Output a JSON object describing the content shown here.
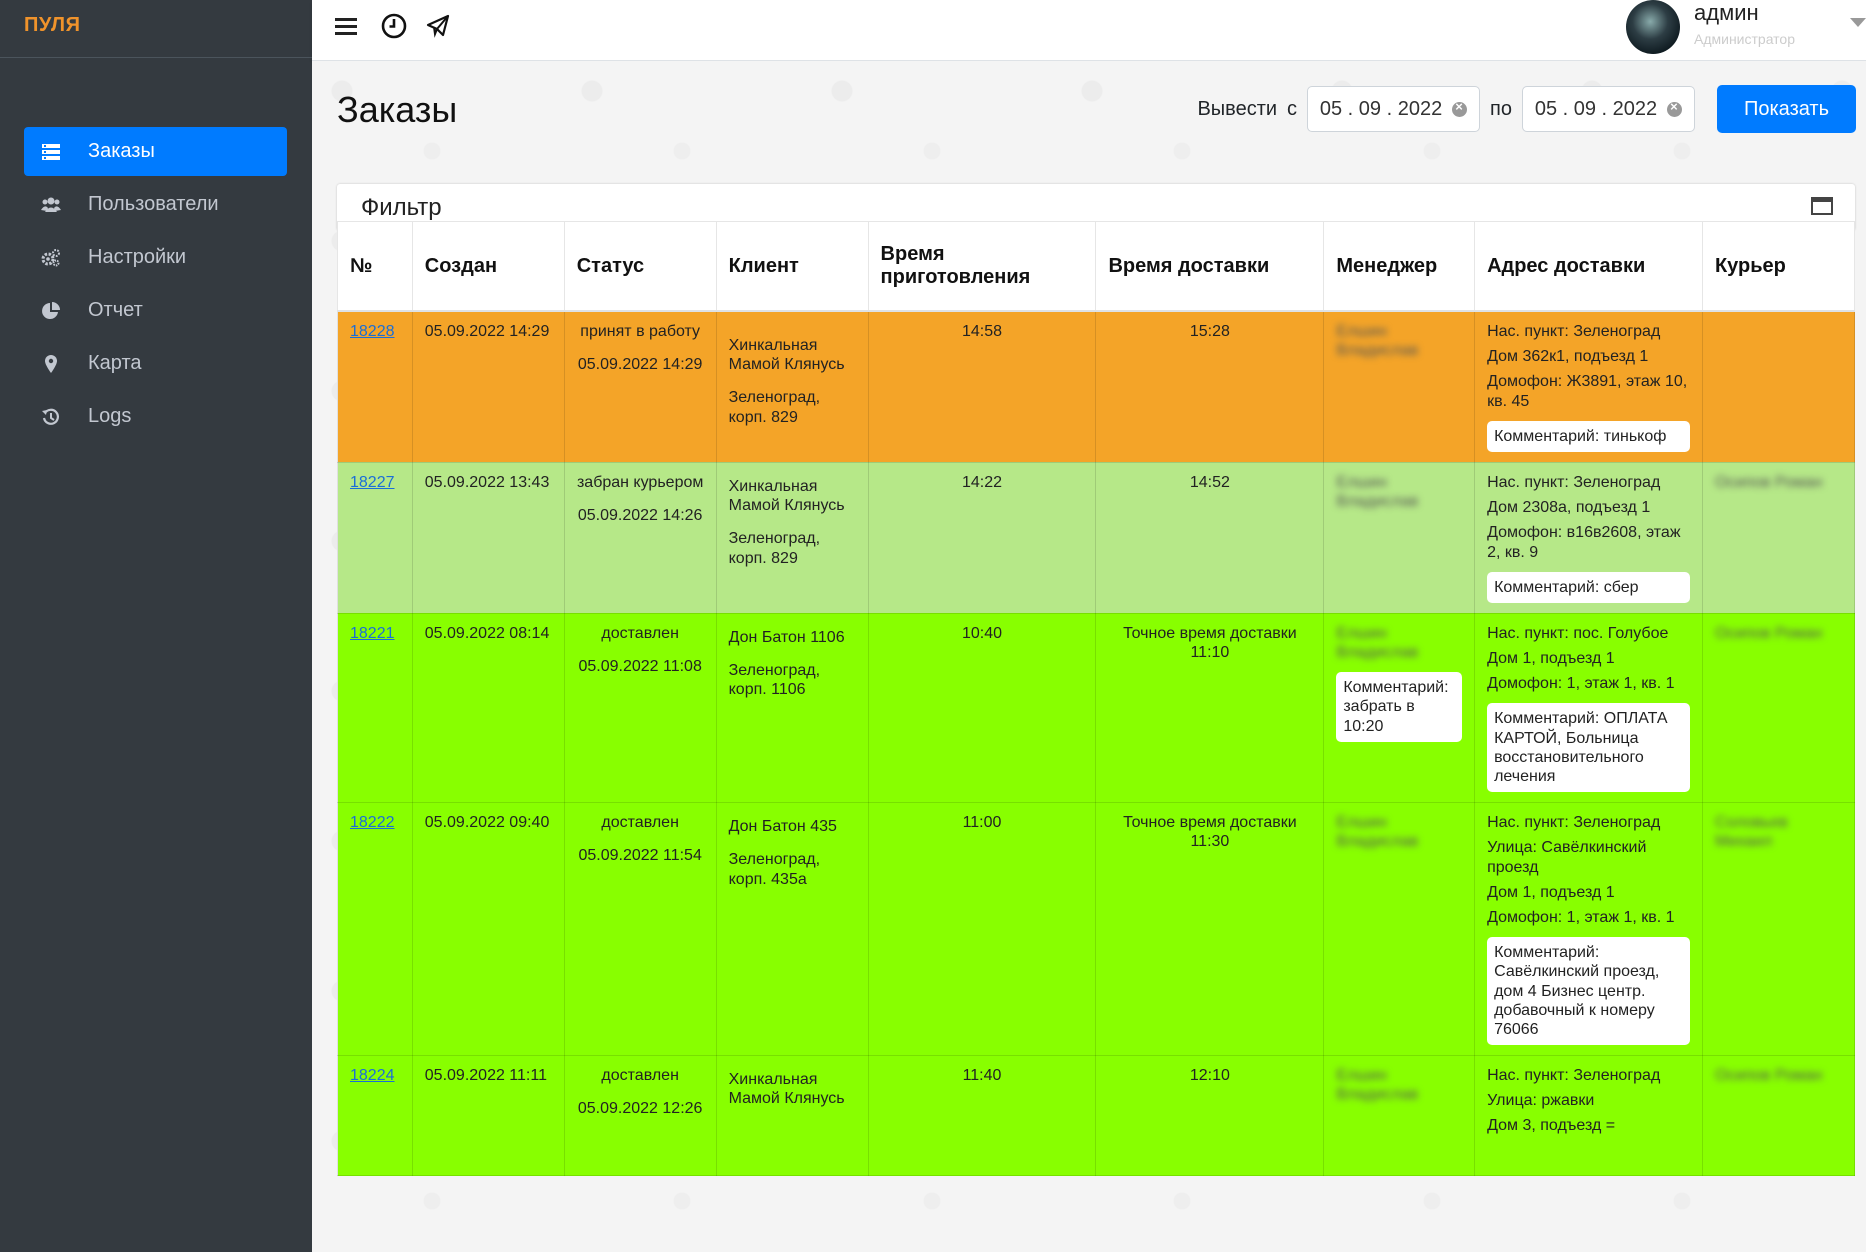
{
  "brand": "ПУЛЯ",
  "sidebar": {
    "items": [
      {
        "label": "Заказы",
        "icon": "list-icon",
        "active": true
      },
      {
        "label": "Пользователи",
        "icon": "users-icon",
        "active": false
      },
      {
        "label": "Настройки",
        "icon": "cogs-icon",
        "active": false
      },
      {
        "label": "Отчет",
        "icon": "pie-chart-icon",
        "active": false
      },
      {
        "label": "Карта",
        "icon": "map-marker-icon",
        "active": false
      },
      {
        "label": "Logs",
        "icon": "history-icon",
        "active": false
      }
    ]
  },
  "topbar": {
    "icons": [
      "menu-icon",
      "clock-icon",
      "telegram-icon"
    ],
    "user": {
      "name": "админ",
      "role": "Администратор"
    }
  },
  "page": {
    "title": "Заказы",
    "range_label": "Вывести",
    "from_label": "с",
    "to_label": "по",
    "from_date": "05 . 09 . 2022",
    "to_date": "05 . 09 . 2022",
    "show_button": "Показать"
  },
  "filter": {
    "title": "Фильтр"
  },
  "table": {
    "headers": [
      "№",
      "Создан",
      "Статус",
      "Клиент",
      "Время приготовления",
      "Время доставки",
      "Менеджер",
      "Адрес доставки",
      "Курьер"
    ],
    "rows": [
      {
        "id": "18228",
        "created": "05.09.2022 14:29",
        "status": "принят в работу",
        "status_time": "05.09.2022 14:29",
        "client": "Хинкальная Мамой Клянусь",
        "client_addr": "Зеленоград, корп. 829",
        "prep": "14:58",
        "delivery": "15:28",
        "manager": "Елшин Владислав",
        "manager_comment": "",
        "addr": [
          "Нас. пункт: Зеленоград",
          "Дом 362к1, подъезд 1",
          "Домофон: Ж3891, этаж 10, кв. 45"
        ],
        "addr_comment": "Комментарий: тинькоф",
        "courier": ""
      },
      {
        "id": "18227",
        "created": "05.09.2022 13:43",
        "status": "забран курьером",
        "status_time": "05.09.2022 14:26",
        "client": "Хинкальная Мамой Клянусь",
        "client_addr": "Зеленоград, корп. 829",
        "prep": "14:22",
        "delivery": "14:52",
        "manager": "Елшин Владислав",
        "manager_comment": "",
        "addr": [
          "Нас. пункт: Зеленоград",
          "Дом 2308а, подъезд 1",
          "Домофон: в16в2608, этаж 2, кв. 9"
        ],
        "addr_comment": "Комментарий: сбер",
        "courier": "Осипов Роман"
      },
      {
        "id": "18221",
        "created": "05.09.2022 08:14",
        "status": "доставлен",
        "status_time": "05.09.2022 11:08",
        "client": "Дон Батон 1106",
        "client_addr": "Зеленоград, корп. 1106",
        "prep": "10:40",
        "delivery": "Точное время доставки 11:10",
        "manager": "Елшин Владислав",
        "manager_comment": "Комментарий: забрать в 10:20",
        "addr": [
          "Нас. пункт: пос. Голубое",
          "Дом 1, подъезд 1",
          "Домофон: 1, этаж 1, кв. 1"
        ],
        "addr_comment": "Комментарий:  ОПЛАТА КАРТОЙ, Больница восстановительного лечения",
        "courier": "Осипов Роман"
      },
      {
        "id": "18222",
        "created": "05.09.2022 09:40",
        "status": "доставлен",
        "status_time": "05.09.2022 11:54",
        "client": "Дон Батон 435",
        "client_addr": "Зеленоград, корп. 435а",
        "prep": "11:00",
        "delivery": "Точное время доставки 11:30",
        "manager": "Елшин Владислав",
        "manager_comment": "",
        "addr": [
          "Нас. пункт: Зеленоград",
          "Улица: Савёлкинский проезд",
          "Дом 1, подъезд 1",
          "Домофон: 1, этаж 1, кв. 1"
        ],
        "addr_comment": "Комментарий:  Савёлкинский проезд, дом 4 Бизнес центр. добавочный к номеру 76066",
        "courier": "Соловьев Михаил"
      },
      {
        "id": "18224",
        "created": "05.09.2022 11:11",
        "status": "доставлен",
        "status_time": "05.09.2022 12:26",
        "client": "Хинкальная Мамой Клянусь",
        "client_addr": "",
        "prep": "11:40",
        "delivery": "12:10",
        "manager": "Елшин Владислав",
        "manager_comment": "",
        "addr": [
          "Нас. пункт: Зеленоград",
          "Улица: ржавки",
          "Дом 3, подъезд ="
        ],
        "addr_comment": "",
        "courier": "Осипов Роман"
      }
    ],
    "row_status_colors": [
      "#f4a428",
      "#b6e888",
      "#88ff00",
      "#88ff00",
      "#88ff00"
    ]
  }
}
